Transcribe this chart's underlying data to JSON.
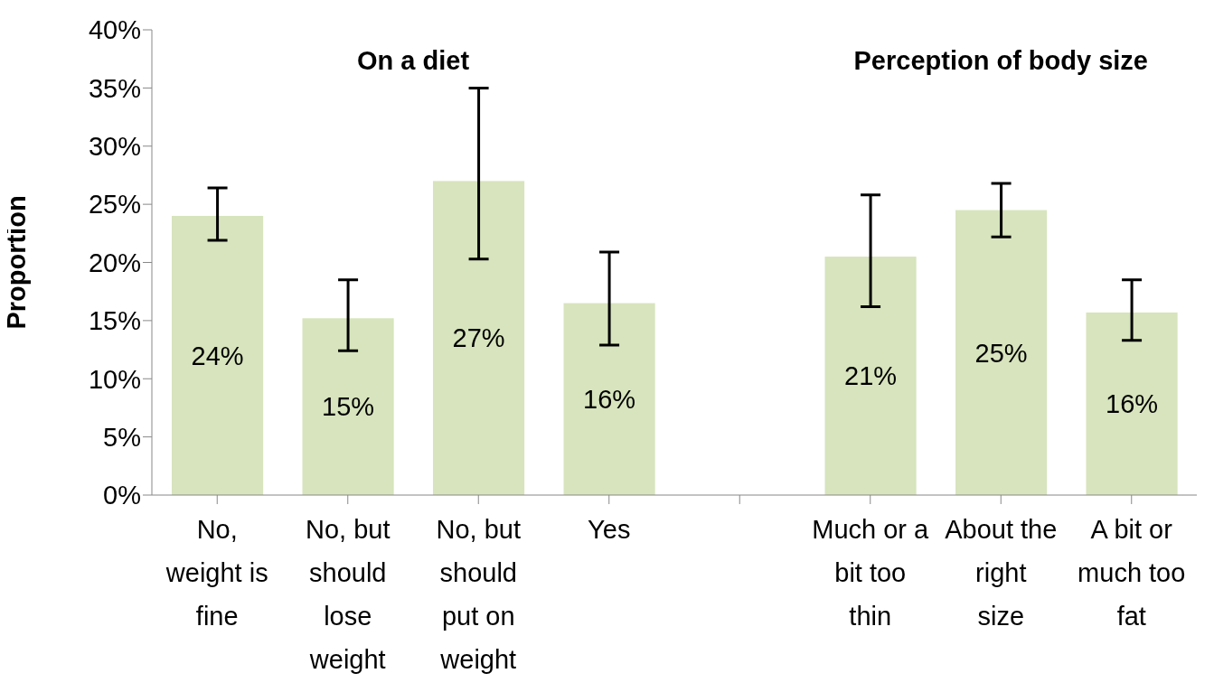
{
  "chart_data": {
    "type": "bar",
    "ylabel": "Proportion",
    "categories": [
      "No, weight is fine",
      "No, but should lose weight",
      "No, but should put on weight",
      "Yes",
      null,
      "Much or a bit too thin",
      "About the right size",
      "A bit or much too fat"
    ],
    "values": [
      24.0,
      15.2,
      27.0,
      16.5,
      null,
      20.5,
      24.5,
      15.7
    ],
    "value_labels": [
      "24%",
      "15%",
      "27%",
      "16%",
      null,
      "21%",
      "25%",
      "16%"
    ],
    "errors": [
      [
        21.9,
        26.4
      ],
      [
        12.4,
        18.5
      ],
      [
        20.3,
        35.0
      ],
      [
        12.9,
        20.9
      ],
      null,
      [
        16.2,
        25.8
      ],
      [
        22.2,
        26.8
      ],
      [
        13.3,
        18.5
      ]
    ],
    "color": "#d7e4bd",
    "ylim": [
      0,
      40
    ],
    "yticks": [
      {
        "value": 0,
        "label": "0%"
      },
      {
        "value": 5,
        "label": "5%"
      },
      {
        "value": 10,
        "label": "10%"
      },
      {
        "value": 15,
        "label": "15%"
      },
      {
        "value": 20,
        "label": "20%"
      },
      {
        "value": 25,
        "label": "25%"
      },
      {
        "value": 30,
        "label": "30%"
      },
      {
        "value": 35,
        "label": "35%"
      },
      {
        "value": 40,
        "label": "40%"
      }
    ],
    "grid": false,
    "annotations": [
      "On a diet",
      "Perception of body size"
    ]
  }
}
